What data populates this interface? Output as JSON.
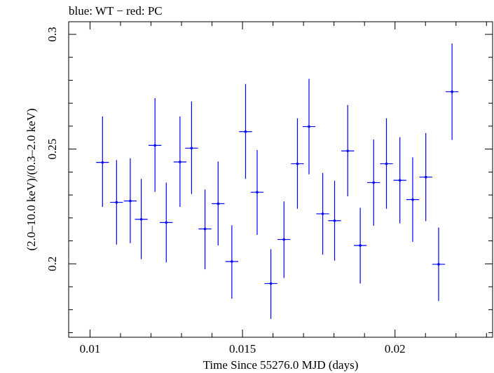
{
  "chart_data": {
    "type": "scatter",
    "title": "blue: WT − red: PC",
    "xlabel": "Time Since 55276.0 MJD (days)",
    "ylabel": "(2.0–10.0 keV)/(0.3–2.0 keV)",
    "xlim": [
      0.0093,
      0.0232
    ],
    "ylim": [
      0.168,
      0.3055
    ],
    "xticks": [
      {
        "value": 0.01,
        "label": "0.01"
      },
      {
        "value": 0.015,
        "label": "0.015"
      },
      {
        "value": 0.02,
        "label": "0.02"
      }
    ],
    "yticks": [
      {
        "value": 0.2,
        "label": "0.2"
      },
      {
        "value": 0.25,
        "label": "0.25"
      },
      {
        "value": 0.3,
        "label": "0.3"
      }
    ],
    "grid": false,
    "series": [
      {
        "color": "#0000ff",
        "x_error": 0.00021,
        "points": [
          {
            "x": 0.01041,
            "y": 0.2442,
            "lo": 0.2248,
            "hi": 0.2642
          },
          {
            "x": 0.01087,
            "y": 0.2268,
            "lo": 0.2084,
            "hi": 0.2452
          },
          {
            "x": 0.01132,
            "y": 0.2274,
            "lo": 0.209,
            "hi": 0.246
          },
          {
            "x": 0.01168,
            "y": 0.2194,
            "lo": 0.202,
            "hi": 0.237
          },
          {
            "x": 0.01213,
            "y": 0.2516,
            "lo": 0.2314,
            "hi": 0.2722
          },
          {
            "x": 0.0125,
            "y": 0.218,
            "lo": 0.2006,
            "hi": 0.2354
          },
          {
            "x": 0.01295,
            "y": 0.2444,
            "lo": 0.2248,
            "hi": 0.2642
          },
          {
            "x": 0.01333,
            "y": 0.2504,
            "lo": 0.2304,
            "hi": 0.2708
          },
          {
            "x": 0.01377,
            "y": 0.2152,
            "lo": 0.1976,
            "hi": 0.2324
          },
          {
            "x": 0.0142,
            "y": 0.2262,
            "lo": 0.208,
            "hi": 0.2446
          },
          {
            "x": 0.01465,
            "y": 0.201,
            "lo": 0.1848,
            "hi": 0.2168
          },
          {
            "x": 0.0151,
            "y": 0.2576,
            "lo": 0.237,
            "hi": 0.2784
          },
          {
            "x": 0.01548,
            "y": 0.2312,
            "lo": 0.2126,
            "hi": 0.2496
          },
          {
            "x": 0.01593,
            "y": 0.1914,
            "lo": 0.176,
            "hi": 0.2064
          },
          {
            "x": 0.01636,
            "y": 0.2106,
            "lo": 0.1938,
            "hi": 0.2272
          },
          {
            "x": 0.0168,
            "y": 0.2436,
            "lo": 0.224,
            "hi": 0.2634
          },
          {
            "x": 0.01718,
            "y": 0.2598,
            "lo": 0.239,
            "hi": 0.2806
          },
          {
            "x": 0.01763,
            "y": 0.2218,
            "lo": 0.204,
            "hi": 0.2396
          },
          {
            "x": 0.01802,
            "y": 0.2188,
            "lo": 0.2014,
            "hi": 0.2362
          },
          {
            "x": 0.01845,
            "y": 0.2492,
            "lo": 0.2294,
            "hi": 0.2692
          },
          {
            "x": 0.01886,
            "y": 0.208,
            "lo": 0.1914,
            "hi": 0.2244
          },
          {
            "x": 0.0193,
            "y": 0.2354,
            "lo": 0.2166,
            "hi": 0.2542
          },
          {
            "x": 0.01972,
            "y": 0.2436,
            "lo": 0.224,
            "hi": 0.2634
          },
          {
            "x": 0.02016,
            "y": 0.2364,
            "lo": 0.2176,
            "hi": 0.2552
          },
          {
            "x": 0.02058,
            "y": 0.228,
            "lo": 0.2096,
            "hi": 0.2464
          },
          {
            "x": 0.02101,
            "y": 0.2378,
            "lo": 0.2186,
            "hi": 0.257
          },
          {
            "x": 0.02143,
            "y": 0.1998,
            "lo": 0.1838,
            "hi": 0.2158
          },
          {
            "x": 0.02187,
            "y": 0.275,
            "lo": 0.254,
            "hi": 0.296
          }
        ]
      }
    ]
  }
}
